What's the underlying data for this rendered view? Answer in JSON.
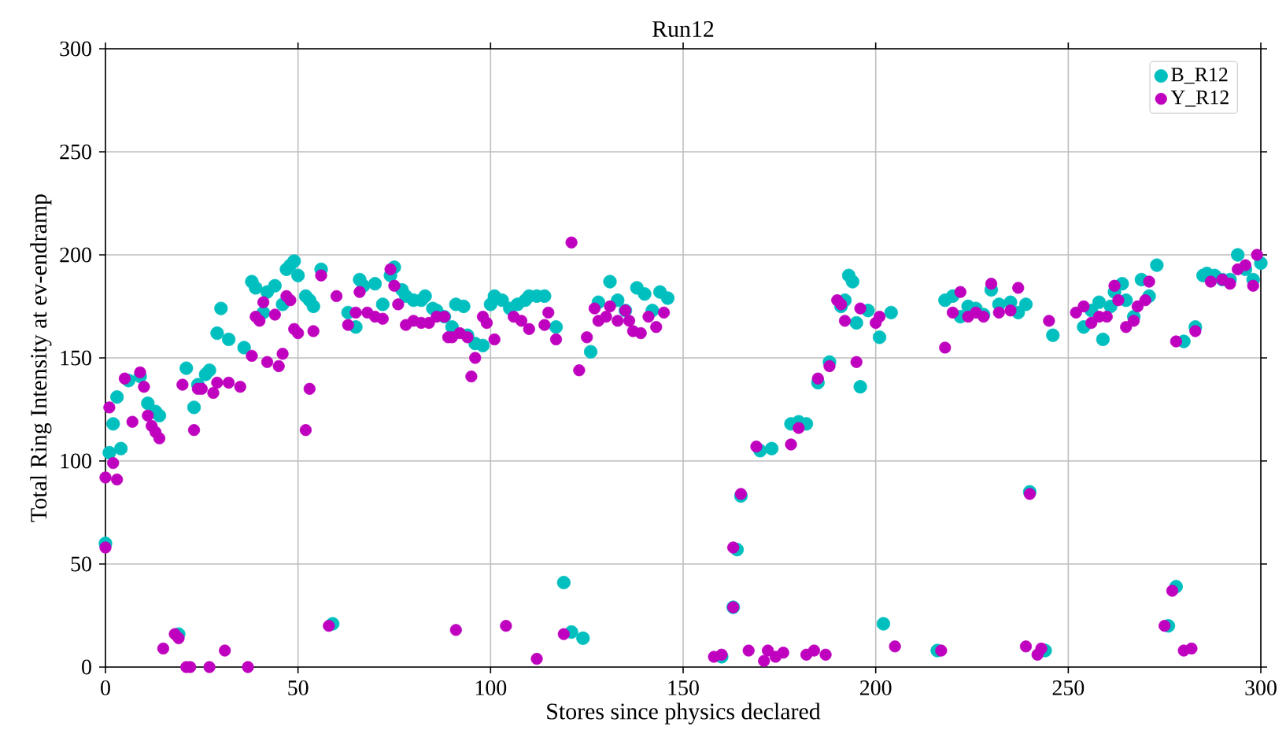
{
  "chart_data": {
    "type": "scatter",
    "title": "Run12",
    "xlabel": "Stores since physics declared",
    "ylabel": "Total Ring Intensity at ev-endramp",
    "xlim": [
      0,
      300
    ],
    "ylim": [
      0,
      300
    ],
    "xticks": [
      0,
      50,
      100,
      150,
      200,
      250,
      300
    ],
    "yticks": [
      0,
      50,
      100,
      150,
      200,
      250,
      300
    ],
    "grid": true,
    "legend": "top right",
    "series": [
      {
        "name": "B_R12",
        "color": "#00bfbf",
        "x": [
          0,
          1,
          2,
          3,
          4,
          6,
          9,
          11,
          13,
          14,
          19,
          21,
          23,
          24,
          26,
          27,
          29,
          30,
          32,
          36,
          38,
          39,
          41,
          42,
          44,
          46,
          47,
          48,
          49,
          50,
          52,
          53,
          54,
          56,
          59,
          63,
          65,
          66,
          67,
          70,
          72,
          74,
          75,
          77,
          78,
          80,
          82,
          83,
          85,
          86,
          88,
          90,
          91,
          93,
          94,
          96,
          98,
          100,
          101,
          103,
          105,
          107,
          109,
          110,
          112,
          114,
          117,
          119,
          121,
          124,
          126,
          128,
          131,
          133,
          135,
          138,
          140,
          142,
          144,
          146,
          160,
          163,
          164,
          165,
          170,
          173,
          178,
          180,
          182,
          185,
          188,
          191,
          192,
          193,
          194,
          195,
          196,
          198,
          201,
          202,
          204,
          216,
          218,
          220,
          222,
          224,
          226,
          228,
          230,
          232,
          235,
          237,
          239,
          240,
          244,
          246,
          254,
          256,
          258,
          259,
          261,
          262,
          264,
          265,
          267,
          269,
          271,
          273,
          276,
          278,
          280,
          283,
          285,
          286,
          288,
          290,
          292,
          294,
          296,
          298,
          300
        ],
        "values": [
          60,
          104,
          118,
          131,
          106,
          139,
          141,
          128,
          124,
          122,
          16,
          145,
          126,
          137,
          142,
          144,
          162,
          174,
          159,
          155,
          187,
          184,
          172,
          182,
          185,
          176,
          193,
          195,
          197,
          190,
          180,
          178,
          175,
          193,
          21,
          172,
          165,
          188,
          185,
          186,
          176,
          190,
          194,
          183,
          180,
          178,
          178,
          180,
          174,
          173,
          170,
          165,
          176,
          175,
          161,
          157,
          156,
          176,
          180,
          178,
          174,
          176,
          178,
          180,
          180,
          180,
          165,
          41,
          17,
          14,
          153,
          177,
          187,
          178,
          173,
          184,
          181,
          173,
          182,
          179,
          5,
          29,
          57,
          83,
          105,
          106,
          118,
          119,
          118,
          138,
          148,
          175,
          178,
          190,
          187,
          167,
          136,
          173,
          160,
          21,
          172,
          8,
          178,
          180,
          170,
          175,
          174,
          171,
          183,
          176,
          177,
          172,
          176,
          85,
          8,
          161,
          165,
          173,
          177,
          159,
          175,
          182,
          186,
          178,
          170,
          188,
          180,
          195,
          20,
          39,
          158,
          165,
          190,
          191,
          190,
          188,
          188,
          200,
          193,
          188,
          196
        ]
      },
      {
        "name": "Y_R12",
        "color": "#bf00bf",
        "x": [
          0,
          0,
          1,
          2,
          3,
          5,
          7,
          9,
          10,
          11,
          12,
          13,
          14,
          15,
          18,
          19,
          20,
          21,
          22,
          23,
          24,
          25,
          27,
          28,
          29,
          31,
          32,
          35,
          37,
          38,
          39,
          40,
          41,
          42,
          44,
          45,
          46,
          47,
          48,
          49,
          50,
          52,
          53,
          54,
          56,
          58,
          60,
          63,
          65,
          66,
          68,
          70,
          72,
          74,
          75,
          76,
          78,
          80,
          82,
          84,
          86,
          88,
          89,
          90,
          91,
          92,
          94,
          95,
          96,
          98,
          99,
          101,
          104,
          106,
          108,
          110,
          112,
          114,
          115,
          117,
          119,
          121,
          123,
          125,
          127,
          128,
          130,
          131,
          133,
          135,
          136,
          137,
          139,
          141,
          143,
          145,
          158,
          160,
          163,
          163,
          165,
          167,
          169,
          171,
          172,
          174,
          176,
          178,
          180,
          182,
          184,
          185,
          187,
          188,
          190,
          191,
          192,
          195,
          196,
          200,
          201,
          205,
          217,
          218,
          220,
          222,
          224,
          226,
          228,
          230,
          232,
          235,
          237,
          239,
          240,
          242,
          243,
          245,
          252,
          254,
          256,
          258,
          260,
          262,
          263,
          265,
          267,
          268,
          270,
          271,
          275,
          277,
          278,
          280,
          282,
          283,
          287,
          290,
          292,
          294,
          296,
          298,
          299
        ],
        "values": [
          58,
          92,
          126,
          99,
          91,
          140,
          119,
          143,
          136,
          122,
          117,
          114,
          111,
          9,
          16,
          14,
          137,
          0,
          0,
          115,
          135,
          135,
          0,
          133,
          138,
          8,
          138,
          136,
          0,
          151,
          170,
          168,
          177,
          148,
          171,
          146,
          152,
          180,
          178,
          164,
          162,
          115,
          135,
          163,
          190,
          20,
          180,
          166,
          172,
          182,
          172,
          170,
          169,
          193,
          185,
          176,
          166,
          168,
          167,
          167,
          170,
          170,
          160,
          160,
          18,
          162,
          160,
          141,
          150,
          170,
          167,
          159,
          20,
          170,
          168,
          164,
          4,
          166,
          172,
          159,
          16,
          206,
          144,
          160,
          174,
          168,
          170,
          175,
          168,
          173,
          168,
          163,
          162,
          170,
          165,
          172,
          5,
          6,
          29,
          58,
          84,
          8,
          107,
          3,
          8,
          5,
          7,
          108,
          116,
          6,
          8,
          140,
          6,
          146,
          178,
          176,
          168,
          148,
          174,
          167,
          170,
          10,
          8,
          155,
          172,
          182,
          170,
          172,
          170,
          186,
          172,
          173,
          184,
          10,
          84,
          6,
          9,
          168,
          172,
          175,
          167,
          170,
          170,
          185,
          178,
          165,
          168,
          175,
          178,
          187,
          20,
          37,
          158,
          8,
          9,
          163,
          187,
          188,
          186,
          193,
          195,
          185,
          200
        ]
      }
    ]
  }
}
